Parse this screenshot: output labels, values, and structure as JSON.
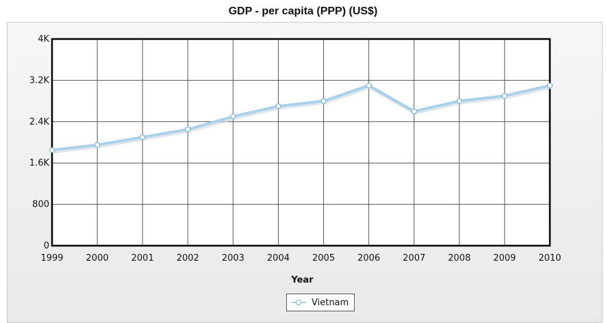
{
  "chart_data": {
    "type": "line",
    "title": "GDP - per capita (PPP) (US$)",
    "xlabel": "Year",
    "ylabel": "",
    "categories": [
      "1999",
      "2000",
      "2001",
      "2002",
      "2003",
      "2004",
      "2005",
      "2006",
      "2007",
      "2008",
      "2009",
      "2010"
    ],
    "series": [
      {
        "name": "Vietnam",
        "values": [
          1850,
          1950,
          2100,
          2250,
          2500,
          2700,
          2800,
          3100,
          2600,
          2800,
          2900,
          3100
        ]
      }
    ],
    "ylim": [
      0,
      4000
    ],
    "yticks": [
      0,
      800,
      1600,
      2400,
      3200,
      4000
    ],
    "ytick_labels": [
      "0",
      "800",
      "1.6K",
      "2.4K",
      "3.2K",
      "4K"
    ],
    "grid": true,
    "legend_position": "bottom-center",
    "colors": {
      "line": "#a9d1ea",
      "marker_edge": "#7fb4d6",
      "plot_bg": "#ffffff",
      "panel_bg": "#eeeeee",
      "grid": "#555555"
    }
  }
}
